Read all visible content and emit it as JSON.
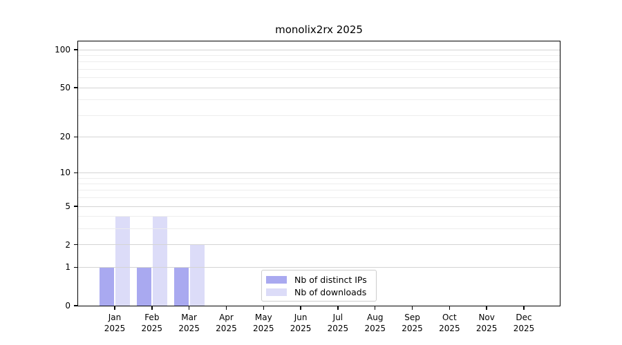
{
  "chart_data": {
    "type": "bar",
    "title": "monolix2rx 2025",
    "categories": [
      "Jan",
      "Feb",
      "Mar",
      "Apr",
      "May",
      "Jun",
      "Jul",
      "Aug",
      "Sep",
      "Oct",
      "Nov",
      "Dec"
    ],
    "category_year": "2025",
    "series": [
      {
        "name": "Nb of distinct IPs",
        "color": "#a9a9f0",
        "values": [
          1,
          1,
          1,
          0,
          0,
          0,
          0,
          0,
          0,
          0,
          0,
          0
        ]
      },
      {
        "name": "Nb of downloads",
        "color": "#dcdcf8",
        "values": [
          4,
          4,
          2,
          0,
          0,
          0,
          0,
          0,
          0,
          0,
          0,
          0
        ]
      }
    ],
    "yscale": "log1p",
    "yticks": [
      0,
      1,
      2,
      5,
      10,
      20,
      50,
      100
    ],
    "minor_gridlines": [
      3,
      4,
      6,
      7,
      8,
      9,
      30,
      40,
      60,
      70,
      80,
      90
    ],
    "ylim": [
      0,
      110
    ],
    "grid": true,
    "legend_position": "bottom-center",
    "colors": {
      "axis": "#000000",
      "grid_major": "#d4d4d4",
      "grid_minor": "#ededed",
      "background": "#ffffff"
    }
  }
}
